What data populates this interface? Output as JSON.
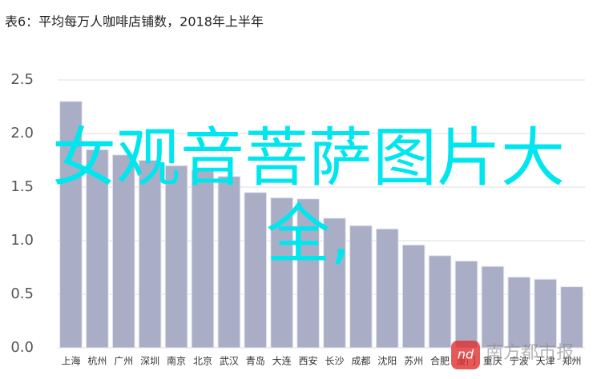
{
  "chart_data": {
    "type": "bar",
    "title": "表6：平均每万人咖啡店铺数，2018年上半年",
    "categories": [
      "上海",
      "杭州",
      "广州",
      "深圳",
      "南京",
      "北京",
      "武汉",
      "青岛",
      "大连",
      "西安",
      "长沙",
      "成都",
      "沈阳",
      "苏州",
      "合肥",
      "厦门",
      "重庆",
      "宁波",
      "天津",
      "郑州"
    ],
    "values": [
      2.3,
      1.85,
      1.8,
      1.75,
      1.7,
      1.66,
      1.6,
      1.45,
      1.4,
      1.39,
      1.21,
      1.14,
      1.11,
      0.96,
      0.86,
      0.81,
      0.76,
      0.66,
      0.64,
      0.57
    ],
    "color": "#a9aec6",
    "ylim": [
      0,
      2.5
    ],
    "yticks": [
      {
        "value": 0,
        "label": "0.0"
      },
      0.5,
      {
        "value": 1,
        "label": "1.0"
      },
      1.5,
      {
        "value": 2,
        "label": "2.0"
      },
      2.5
    ],
    "grid": true,
    "annotation": "女观音菩萨图片大全,",
    "watermark_logo": "nd",
    "watermark": "南方都市报"
  }
}
